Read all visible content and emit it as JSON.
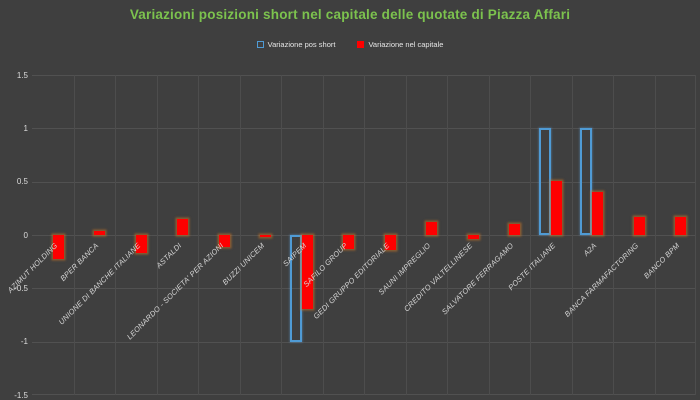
{
  "chart_data": {
    "type": "bar",
    "title": "Variazioni posizioni short nel capitale delle quotate di Piazza Affari",
    "title_color": "#7cc24e",
    "background_color": "#3f3f3f",
    "categories": [
      "AZIMUT HOLDING",
      "BPER BANCA",
      "UNIONE DI BANCHE ITALIANE",
      "ASTALDI",
      "LEONARDO - SOCIETA' PER AZIONI",
      "BUZZI UNICEM",
      "SAIPEM",
      "SAFILO GROUP",
      "GEDI GRUPPO EDITORIALE",
      "SAUNI IMPREGLIO",
      "CREDITO VALTELLINESE",
      "SALVATORE FERRAGAMO",
      "POSTE ITALIANE",
      "A2A",
      "BANCA FARMAFACTORING",
      "BANCO BPM"
    ],
    "series": [
      {
        "name": "Variazione pos short",
        "style": "outline",
        "color": "#4f9bd5",
        "values": [
          0,
          0,
          0,
          0,
          0,
          0,
          -1.0,
          0,
          0,
          0,
          0,
          0,
          1.0,
          1.0,
          0,
          0
        ]
      },
      {
        "name": "Variazione nel capitale",
        "style": "solid",
        "color": "#fe0000",
        "glow_color": "#cd7828",
        "values": [
          -0.22,
          0.04,
          -0.17,
          0.15,
          -0.11,
          -0.02,
          -0.69,
          -0.13,
          -0.14,
          0.12,
          -0.04,
          0.1,
          0.51,
          0.4,
          0.17,
          0.17
        ]
      }
    ],
    "ylim": [
      -1.5,
      1.5
    ],
    "ytick_step": 0.5,
    "ytick_labels": [
      "1.5",
      "1",
      "0.5",
      "0",
      "-0.5",
      "-1",
      "-1.5"
    ],
    "grid": true,
    "legend_position": "top"
  }
}
